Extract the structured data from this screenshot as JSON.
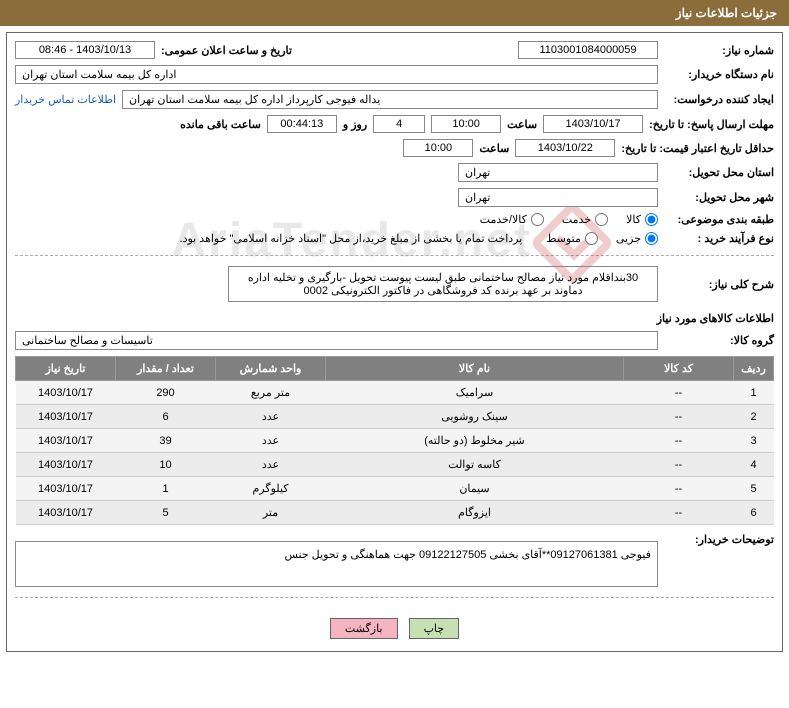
{
  "header": {
    "title": "جزئیات اطلاعات نیاز"
  },
  "fields": {
    "need_no_label": "شماره نیاز:",
    "need_no": "1103001084000059",
    "announce_label": "تاریخ و ساعت اعلان عمومی:",
    "announce_value": "1403/10/13 - 08:46",
    "buyer_org_label": "نام دستگاه خریدار:",
    "buyer_org": "اداره کل بیمه سلامت استان تهران",
    "requester_label": "ایجاد کننده درخواست:",
    "requester": "یداله فیوجی کارپرداز اداره کل بیمه سلامت استان تهران",
    "contact_link": "اطلاعات تماس خریدار",
    "deadline_label": "مهلت ارسال پاسخ: تا تاریخ:",
    "deadline_date": "1403/10/17",
    "hour_label": "ساعت",
    "deadline_hour": "10:00",
    "days_label_pre": "",
    "days_remaining": "4",
    "days_and": "روز و",
    "time_remaining": "00:44:13",
    "remaining_suffix": "ساعت باقی مانده",
    "validity_label": "حداقل تاریخ اعتبار قیمت: تا تاریخ:",
    "validity_date": "1403/10/22",
    "validity_hour": "10:00",
    "province_label": "استان محل تحویل:",
    "province": "تهران",
    "city_label": "شهر محل تحویل:",
    "city": "تهران",
    "subject_class_label": "طبقه بندی موضوعی:",
    "class_opts": [
      "کالا",
      "خدمت",
      "کالا/خدمت"
    ],
    "process_label": "نوع فرآیند خرید :",
    "process_opts": [
      "جزیی",
      "متوسط"
    ],
    "process_note": "پرداخت تمام یا بخشی از مبلغ خرید،از محل \"اسناد خزانه اسلامی\" خواهد بود.",
    "summary_label": "شرح کلی نیاز:",
    "summary": "30بنداقلام مورد نیاز مصالح ساختمانی طبق لیست پیوست تحویل -بارگیری و تخلیه اداره دماوند بر عهد برنده کد فروشگاهی در فاکتور الکترونیکی 0002",
    "items_title": "اطلاعات کالاهای مورد نیاز",
    "group_label": "گروه کالا:",
    "group": "تاسیسات و مصالح ساختمانی",
    "buyer_notes_label": "توضیحات خریدار:",
    "buyer_notes": "فیوجی 09127061381**آقای بخشی 09122127505 جهت هماهنگی و تحویل جنس"
  },
  "table": {
    "headers": [
      "ردیف",
      "کد کالا",
      "نام کالا",
      "واحد شمارش",
      "تعداد / مقدار",
      "تاریخ نیاز"
    ],
    "rows": [
      [
        "1",
        "--",
        "سرامیک",
        "متر مربع",
        "290",
        "1403/10/17"
      ],
      [
        "2",
        "--",
        "سینک روشویی",
        "عدد",
        "6",
        "1403/10/17"
      ],
      [
        "3",
        "--",
        "شیر مخلوط (دو حالته)",
        "عدد",
        "39",
        "1403/10/17"
      ],
      [
        "4",
        "--",
        "کاسه توالت",
        "عدد",
        "10",
        "1403/10/17"
      ],
      [
        "5",
        "--",
        "سیمان",
        "کیلوگرم",
        "1",
        "1403/10/17"
      ],
      [
        "6",
        "--",
        "ایزوگام",
        "متر",
        "5",
        "1403/10/17"
      ]
    ]
  },
  "buttons": {
    "print": "چاپ",
    "back": "بازگشت"
  },
  "colors": {
    "header_bg": "#8a6d3b",
    "th_bg": "#808080"
  }
}
